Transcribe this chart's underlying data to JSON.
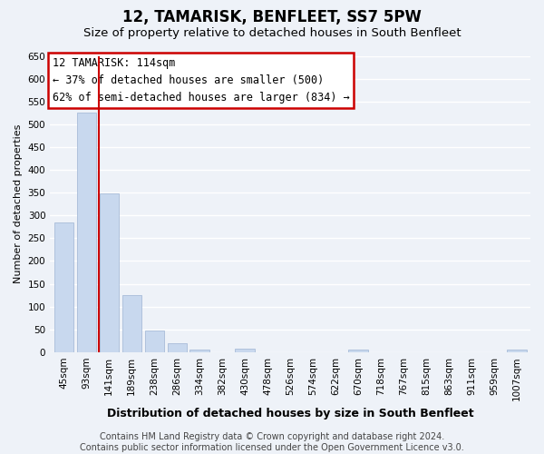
{
  "title": "12, TAMARISK, BENFLEET, SS7 5PW",
  "subtitle": "Size of property relative to detached houses in South Benfleet",
  "xlabel": "Distribution of detached houses by size in South Benfleet",
  "ylabel": "Number of detached properties",
  "bar_labels": [
    "45sqm",
    "93sqm",
    "141sqm",
    "189sqm",
    "238sqm",
    "286sqm",
    "334sqm",
    "382sqm",
    "430sqm",
    "478sqm",
    "526sqm",
    "574sqm",
    "622sqm",
    "670sqm",
    "718sqm",
    "767sqm",
    "815sqm",
    "863sqm",
    "911sqm",
    "959sqm",
    "1007sqm"
  ],
  "bar_values": [
    285,
    525,
    348,
    125,
    48,
    20,
    5,
    0,
    8,
    0,
    0,
    0,
    0,
    5,
    0,
    0,
    0,
    0,
    0,
    0,
    5
  ],
  "bar_color": "#c8d8ee",
  "bar_edge_color": "#a8bcd8",
  "vline_x": 1.55,
  "vline_color": "#cc0000",
  "ylim": [
    0,
    650
  ],
  "yticks": [
    0,
    50,
    100,
    150,
    200,
    250,
    300,
    350,
    400,
    450,
    500,
    550,
    600,
    650
  ],
  "annotation_title": "12 TAMARISK: 114sqm",
  "annotation_line1": "← 37% of detached houses are smaller (500)",
  "annotation_line2": "62% of semi-detached houses are larger (834) →",
  "annotation_box_color": "#cc0000",
  "footer1": "Contains HM Land Registry data © Crown copyright and database right 2024.",
  "footer2": "Contains public sector information licensed under the Open Government Licence v3.0.",
  "bg_color": "#eef2f8",
  "plot_bg_color": "#eef2f8",
  "grid_color": "#ffffff",
  "title_fontsize": 12,
  "subtitle_fontsize": 9.5,
  "xlabel_fontsize": 9,
  "ylabel_fontsize": 8,
  "footer_fontsize": 7,
  "tick_fontsize": 7.5,
  "annot_fontsize": 8.5
}
